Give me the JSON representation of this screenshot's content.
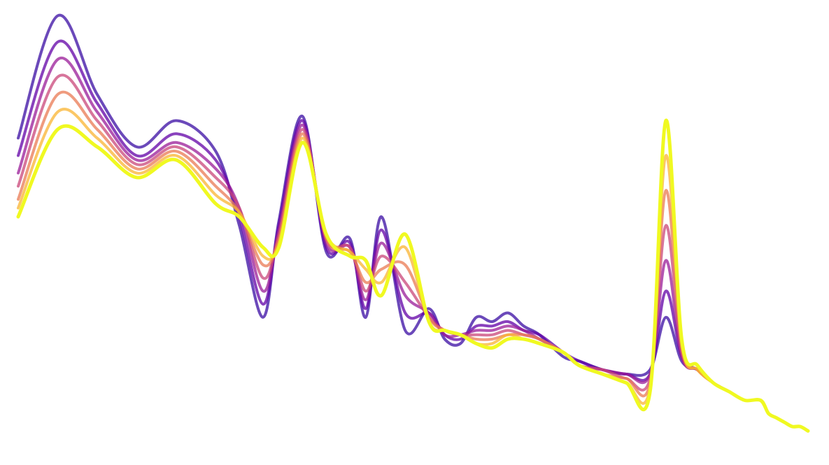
{
  "chart_data": {
    "type": "line",
    "title": "",
    "xlabel": "",
    "ylabel": "",
    "axes_visible": false,
    "grid": false,
    "legend": "none",
    "colormap": "plasma",
    "colormap_stops": [
      "#3a0ca3",
      "#6a00a8",
      "#b12a90",
      "#e16462",
      "#fca636",
      "#f0f921"
    ],
    "x": [
      0,
      5,
      10,
      15,
      20,
      25,
      28,
      31,
      33,
      36,
      39,
      42,
      44,
      46,
      49,
      52,
      54,
      56,
      58,
      60,
      62,
      64,
      66,
      69,
      71,
      74,
      77,
      80,
      82,
      84,
      86,
      88,
      90,
      92,
      94,
      95,
      96,
      97,
      98,
      99,
      100
    ],
    "xlim": [
      0,
      100
    ],
    "ylim": [
      0,
      100
    ],
    "series": [
      {
        "name": "",
        "values": [
          70,
          98,
          80,
          68,
          74,
          67,
          50,
          29,
          51,
          75,
          44,
          47,
          29,
          52,
          26,
          31,
          24,
          23,
          29,
          28,
          30,
          27,
          25,
          20,
          19,
          17,
          16,
          17,
          29,
          19,
          17,
          14,
          12,
          10,
          10,
          7,
          6,
          5,
          4,
          4,
          3
        ]
      },
      {
        "name": "",
        "values": [
          66,
          92,
          78,
          66,
          71,
          65,
          52,
          32,
          50,
          74,
          45,
          46,
          31,
          49,
          30,
          30,
          25,
          24,
          27,
          27,
          28,
          26,
          25,
          21,
          19,
          17,
          16,
          16,
          35,
          20,
          17,
          14,
          12,
          10,
          10,
          7,
          6,
          5,
          4,
          4,
          3
        ]
      },
      {
        "name": "",
        "values": [
          62,
          88,
          76,
          65,
          69,
          63,
          54,
          35,
          49,
          73,
          46,
          45,
          33,
          46,
          34,
          30,
          25,
          25,
          26,
          26,
          27,
          26,
          24,
          21,
          18,
          17,
          16,
          16,
          42,
          20,
          17,
          14,
          12,
          10,
          10,
          7,
          6,
          5,
          4,
          4,
          3
        ]
      },
      {
        "name": "",
        "values": [
          59,
          84,
          74,
          64,
          68,
          61,
          54,
          38,
          48,
          72,
          47,
          45,
          35,
          43,
          37,
          29,
          26,
          25,
          25,
          25,
          26,
          25,
          24,
          21,
          18,
          17,
          15,
          15,
          50,
          21,
          17,
          14,
          12,
          10,
          10,
          7,
          6,
          5,
          4,
          4,
          3
        ]
      },
      {
        "name": "",
        "values": [
          56,
          80,
          72,
          63,
          67,
          59,
          53,
          41,
          47,
          71,
          47,
          44,
          37,
          40,
          41,
          29,
          26,
          25,
          24,
          24,
          25,
          25,
          24,
          21,
          18,
          16,
          15,
          14,
          58,
          22,
          17,
          14,
          12,
          10,
          10,
          7,
          6,
          5,
          4,
          4,
          3
        ]
      },
      {
        "name": "",
        "values": [
          54,
          76,
          70,
          62,
          66,
          57,
          53,
          43,
          46,
          70,
          48,
          44,
          40,
          37,
          45,
          28,
          26,
          25,
          23,
          23,
          25,
          24,
          23,
          21,
          18,
          16,
          14,
          13,
          66,
          23,
          17,
          14,
          12,
          10,
          10,
          7,
          6,
          5,
          4,
          4,
          3
        ]
      },
      {
        "name": "",
        "values": [
          52,
          72,
          68,
          61,
          65,
          55,
          52,
          45,
          45,
          69,
          48,
          43,
          42,
          34,
          48,
          28,
          26,
          25,
          23,
          22,
          24,
          24,
          23,
          21,
          18,
          16,
          14,
          12,
          74,
          24,
          18,
          14,
          12,
          10,
          10,
          7,
          6,
          5,
          4,
          4,
          3
        ]
      }
    ]
  }
}
